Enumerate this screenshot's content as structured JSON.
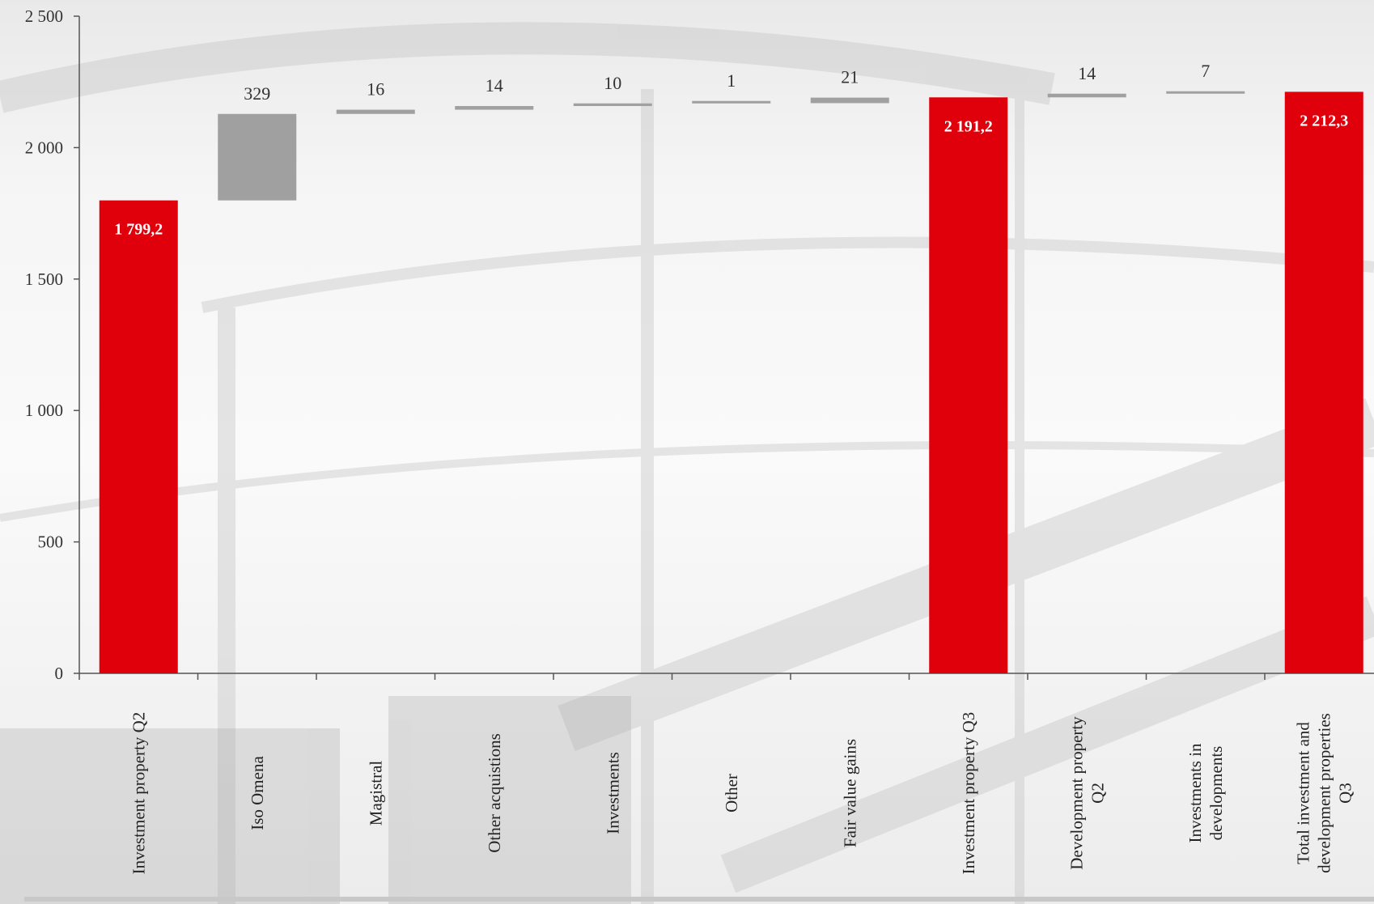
{
  "colors": {
    "total_bar": "#e0000b",
    "delta_bar": "#a0a0a0",
    "axis": "#555555"
  },
  "chart_data": {
    "type": "bar",
    "subtype": "waterfall",
    "ylim": [
      0,
      2500
    ],
    "yticks": [
      0,
      500,
      1000,
      1500,
      2000,
      2500
    ],
    "ytick_labels": [
      "0",
      "500",
      "1 000",
      "1 500",
      "2 000",
      "2 500"
    ],
    "categories": [
      "Investment property Q2",
      "Iso Omena",
      "Magistral",
      "Other acquistions",
      "Investments",
      "Other",
      "Fair value gains",
      "Investment property Q3",
      "Development property Q2",
      "Investments in developments",
      "Total investment and development properties Q3"
    ],
    "category_label_lines": [
      [
        "Investment property Q2"
      ],
      [
        "Iso Omena"
      ],
      [
        "Magistral"
      ],
      [
        "Other acquistions"
      ],
      [
        "Investments"
      ],
      [
        "Other"
      ],
      [
        "Fair value gains"
      ],
      [
        "Investment property Q3"
      ],
      [
        "Development property",
        "Q2"
      ],
      [
        "Investments in",
        "developments"
      ],
      [
        "Total investment and",
        "development properties",
        "Q3"
      ]
    ],
    "bars": [
      {
        "kind": "total",
        "value": 1799.2,
        "label": "1 799,2"
      },
      {
        "kind": "delta",
        "value": 329,
        "label": "329"
      },
      {
        "kind": "delta",
        "value": 16,
        "label": "16"
      },
      {
        "kind": "delta",
        "value": 14,
        "label": "14"
      },
      {
        "kind": "delta",
        "value": 10,
        "label": "10"
      },
      {
        "kind": "delta",
        "value": 1,
        "label": "1"
      },
      {
        "kind": "delta",
        "value": 21,
        "label": "21"
      },
      {
        "kind": "total",
        "value": 2191.2,
        "label": "2 191,2"
      },
      {
        "kind": "delta",
        "value": 14,
        "label": "14"
      },
      {
        "kind": "delta",
        "value": 7,
        "label": "7"
      },
      {
        "kind": "total",
        "value": 2212.3,
        "label": "2 212,3"
      }
    ],
    "grid": false,
    "legend": "none"
  }
}
